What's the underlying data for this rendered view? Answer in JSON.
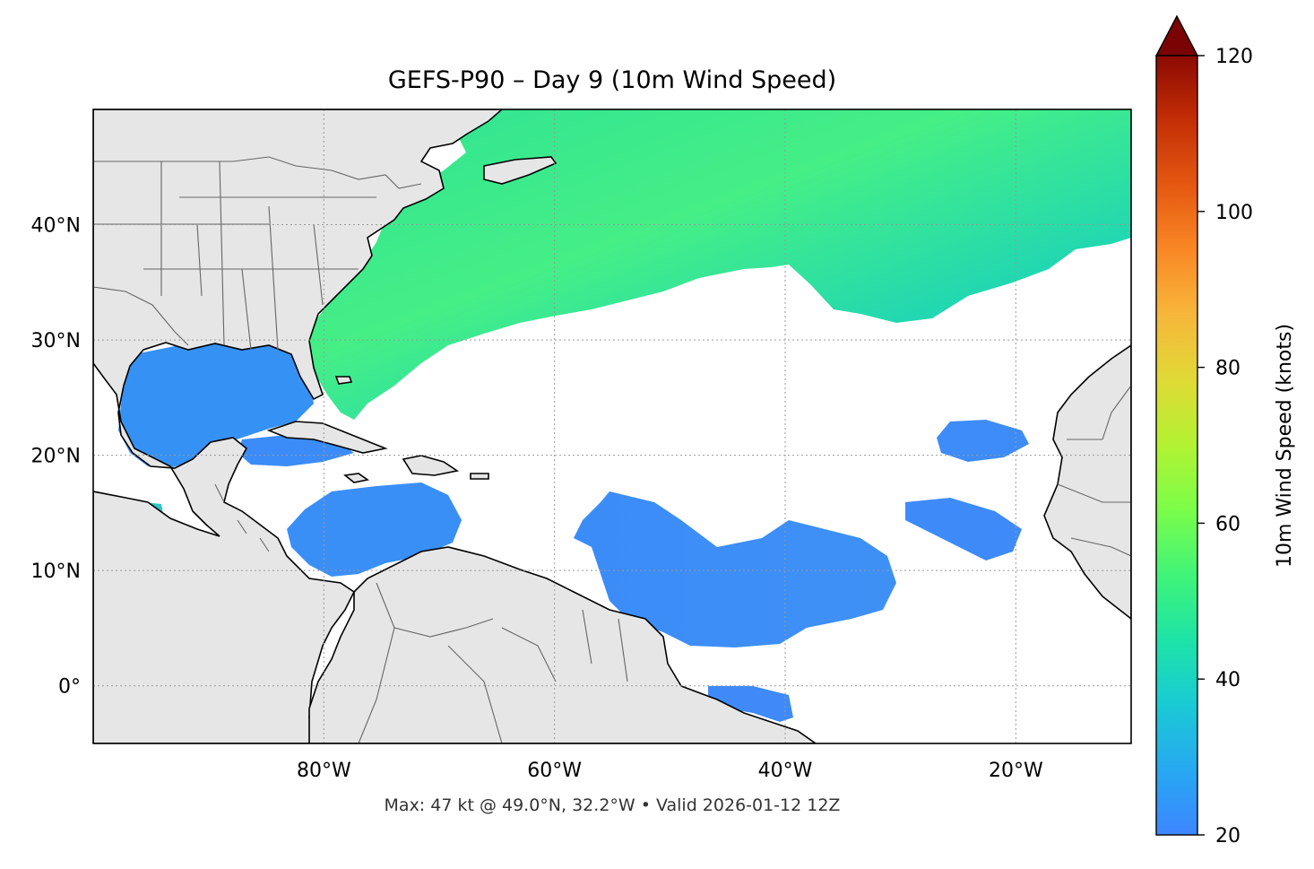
{
  "title": "GEFS-P90 – Day 9 (10m Wind Speed)",
  "footer": "Max: 47 kt @ 49.0°N, 32.2°W • Valid 2026-01-12 12Z",
  "map": {
    "lon_range": [
      -100,
      -10
    ],
    "lat_range": [
      -5,
      50
    ],
    "lon_ticks": [
      {
        "value": -80,
        "label": "80°W"
      },
      {
        "value": -60,
        "label": "60°W"
      },
      {
        "value": -40,
        "label": "40°W"
      },
      {
        "value": -20,
        "label": "20°W"
      }
    ],
    "lat_ticks": [
      {
        "value": 40,
        "label": "40°N"
      },
      {
        "value": 30,
        "label": "30°N"
      },
      {
        "value": 20,
        "label": "20°N"
      },
      {
        "value": 10,
        "label": "10°N"
      },
      {
        "value": 0,
        "label": "0°"
      }
    ],
    "gridlines": true,
    "land_color": "#e6e6e6",
    "ocean_color": "#ffffff"
  },
  "colorbar": {
    "label": "10m Wind Speed (knots)",
    "min": 20,
    "max": 120,
    "ticks": [
      {
        "value": 20,
        "label": "20"
      },
      {
        "value": 40,
        "label": "40"
      },
      {
        "value": 60,
        "label": "60"
      },
      {
        "value": 80,
        "label": "80"
      },
      {
        "value": 100,
        "label": "100"
      },
      {
        "value": 120,
        "label": "120"
      }
    ],
    "extend": "max",
    "extend_color": "#7a0403",
    "colormap": "turbo"
  },
  "chart_data": {
    "type": "heatmap",
    "variable": "10m Wind Speed",
    "units": "knots",
    "max_value": 47,
    "max_lat": 49.0,
    "max_lon": -32.2,
    "valid_time": "2026-01-12 12Z"
  }
}
